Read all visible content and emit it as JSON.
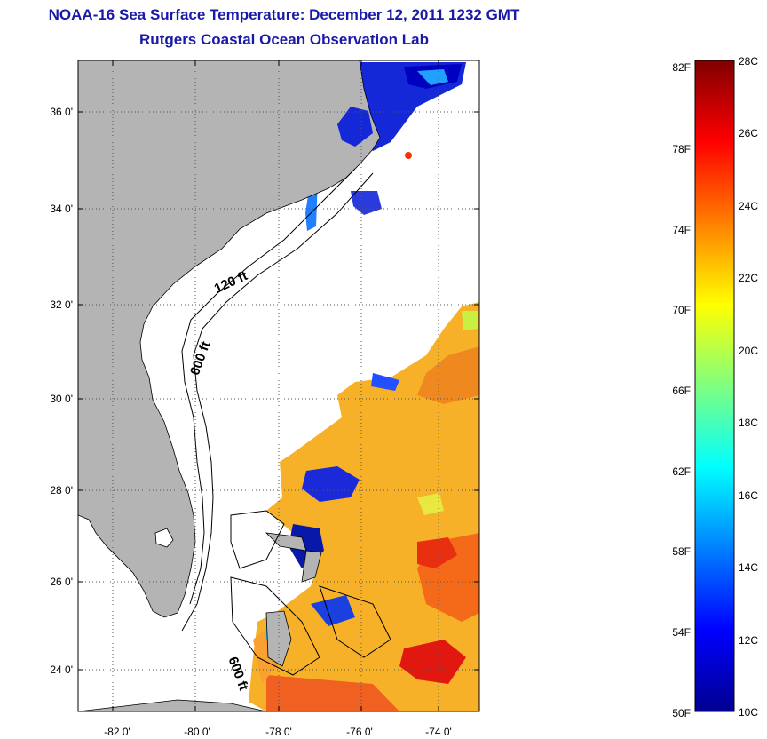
{
  "title": {
    "line1": "NOAA-16 Sea Surface Temperature:  December 12, 2011 1232 GMT",
    "line2": "Rutgers Coastal Ocean Observation Lab"
  },
  "map": {
    "lat_labels": [
      "36 0'",
      "34 0'",
      "32 0'",
      "30 0'",
      "28 0'",
      "26 0'",
      "24 0'"
    ],
    "lon_labels": [
      "-82 0'",
      "-80 0'",
      "-78 0'",
      "-76 0'",
      "-74 0'"
    ],
    "lat_values": [
      36,
      34,
      32,
      30,
      28,
      26,
      24
    ],
    "lon_values": [
      -82,
      -80,
      -78,
      -76,
      -74
    ],
    "lat_range": [
      23.0,
      37.0
    ],
    "lon_range": [
      -83.0,
      -73.0
    ],
    "contour_labels": [
      "120 ft",
      "600 ft",
      "600 ft"
    ],
    "land_color": "#b4b4b4",
    "grid": "dotted"
  },
  "colorbar": {
    "f_labels": [
      "82F",
      "78F",
      "74F",
      "70F",
      "66F",
      "62F",
      "58F",
      "54F",
      "50F"
    ],
    "c_labels": [
      "28C",
      "26C",
      "24C",
      "22C",
      "20C",
      "18C",
      "16C",
      "14C",
      "12C",
      "10C"
    ],
    "min_c": 10,
    "max_c": 28,
    "colormap": "jet"
  }
}
